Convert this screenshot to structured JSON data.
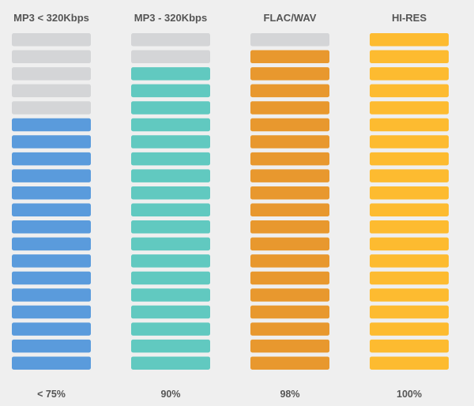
{
  "chart_data": {
    "type": "bar",
    "style": "segmented-level-meter",
    "segments_per_column": 20,
    "categories": [
      "MP3 < 320Kbps",
      "MP3 - 320Kbps",
      "FLAC/WAV",
      "HI-RES"
    ],
    "filled_segments": [
      15,
      18,
      19,
      20
    ],
    "value_labels": [
      "< 75%",
      "90%",
      "98%",
      "100%"
    ],
    "colors": [
      "#5a9bdc",
      "#61c9c0",
      "#e8982e",
      "#fdbb30"
    ],
    "empty_color": "#d4d5d7"
  }
}
